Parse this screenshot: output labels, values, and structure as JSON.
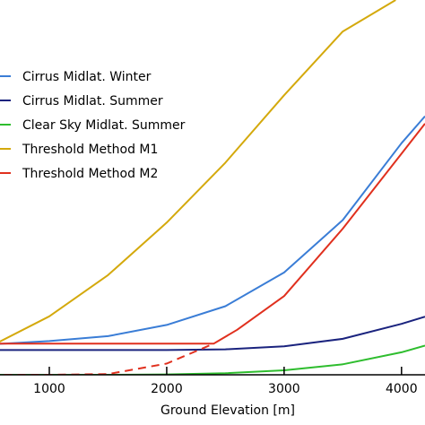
{
  "chart_data": {
    "type": "line",
    "title": "",
    "xlabel": "Ground Elevation [m]",
    "ylabel": "",
    "xlim": [
      580,
      4200
    ],
    "ylim": [
      0,
      1.0
    ],
    "x_ticks": [
      {
        "value": 1000,
        "label": "1000"
      },
      {
        "value": 2000,
        "label": "2000"
      },
      {
        "value": 3000,
        "label": "3000"
      },
      {
        "value": 4000,
        "label": "4000"
      }
    ],
    "legend_position": "top-left",
    "series": [
      {
        "name": "Cirrus Midlat. Winter",
        "color": "#3a7dd6",
        "x": [
          500,
          1000,
          1500,
          2000,
          2500,
          3000,
          3500,
          4000,
          4200
        ],
        "y": [
          0.081,
          0.09,
          0.103,
          0.133,
          0.183,
          0.273,
          0.413,
          0.618,
          0.69
        ]
      },
      {
        "name": "Cirrus Midlat. Summer",
        "color": "#1a237e",
        "x": [
          500,
          1000,
          1500,
          2000,
          2500,
          3000,
          3500,
          4000,
          4200
        ],
        "y": [
          0.066,
          0.066,
          0.066,
          0.066,
          0.068,
          0.076,
          0.096,
          0.136,
          0.155
        ]
      },
      {
        "name": "Clear Sky Midlat. Summer",
        "color": "#2ebd2e",
        "x": [
          500,
          1000,
          1500,
          2000,
          2500,
          3000,
          3500,
          4000,
          4200
        ],
        "y": [
          0.0,
          0.0,
          0.0,
          0.001,
          0.004,
          0.012,
          0.028,
          0.06,
          0.078
        ]
      },
      {
        "name": "Threshold Method M1",
        "color": "#d4a90c",
        "x": [
          500,
          1000,
          1500,
          2000,
          2500,
          3000,
          3500,
          3950
        ],
        "y": [
          0.076,
          0.156,
          0.266,
          0.406,
          0.566,
          0.746,
          0.916,
          1.0
        ]
      },
      {
        "name": "Threshold Method M2",
        "color": "#e0301e",
        "x": [
          500,
          2400,
          2600,
          3000,
          3500,
          4000,
          4200
        ],
        "y": [
          0.083,
          0.083,
          0.12,
          0.21,
          0.39,
          0.59,
          0.67
        ]
      },
      {
        "name": "",
        "color": "#e0301e",
        "dashed": true,
        "x": [
          500,
          1000,
          1500,
          2000,
          2400
        ],
        "y": [
          0.0,
          0.0,
          0.002,
          0.03,
          0.083
        ]
      }
    ]
  }
}
